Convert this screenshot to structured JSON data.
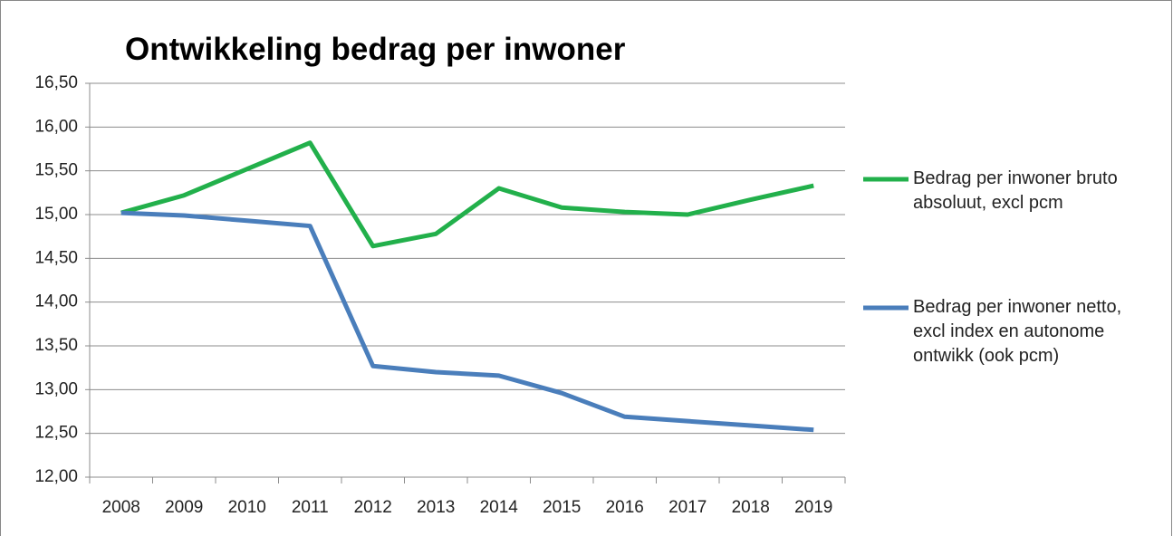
{
  "chart_data": {
    "type": "line",
    "title": "Ontwikkeling bedrag per inwoner",
    "categories": [
      "2008",
      "2009",
      "2010",
      "2011",
      "2012",
      "2013",
      "2014",
      "2015",
      "2016",
      "2017",
      "2018",
      "2019"
    ],
    "series": [
      {
        "name": "Bedrag per inwoner bruto absoluut, excl pcm",
        "color": "#22b04b",
        "values": [
          15.02,
          15.22,
          15.52,
          15.82,
          14.64,
          14.78,
          15.3,
          15.08,
          15.03,
          15.0,
          15.17,
          15.33
        ]
      },
      {
        "name": "Bedrag per inwoner netto, excl index en autonome ontwikk (ook pcm)",
        "color": "#4a7ebb",
        "values": [
          15.02,
          14.99,
          14.93,
          14.87,
          13.27,
          13.2,
          13.16,
          12.96,
          12.69,
          12.64,
          12.59,
          12.54
        ]
      }
    ],
    "ylim": [
      12,
      16.5
    ],
    "yticks": [
      {
        "value": 12,
        "label": "12,00"
      },
      {
        "value": 12.5,
        "label": "12,50"
      },
      {
        "value": 13,
        "label": "13,00"
      },
      {
        "value": 13.5,
        "label": "13,50"
      },
      {
        "value": 14,
        "label": "14,00"
      },
      {
        "value": 14.5,
        "label": "14,50"
      },
      {
        "value": 15,
        "label": "15,00"
      },
      {
        "value": 15.5,
        "label": "15,50"
      },
      {
        "value": 16,
        "label": "16,00"
      },
      {
        "value": 16.5,
        "label": "16,50"
      }
    ],
    "grid": true,
    "legend": "right"
  }
}
